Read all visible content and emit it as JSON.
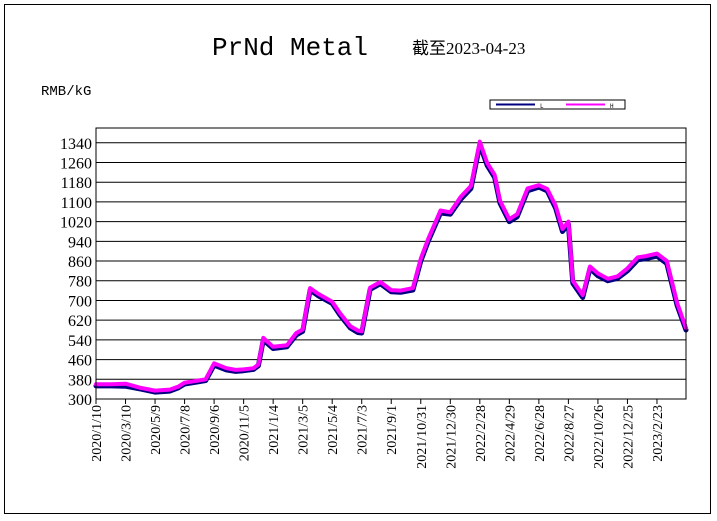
{
  "chart_data": {
    "type": "line",
    "title": "PrNd Metal",
    "subtitle": "截至2023-04-23",
    "ylabel": "RMB/kG",
    "xlabel": "",
    "ylim": [
      300,
      1400
    ],
    "yticks": [
      300,
      380,
      460,
      540,
      620,
      700,
      780,
      860,
      940,
      1020,
      1100,
      1180,
      1260,
      1340
    ],
    "xticks": [
      "2020/1/10",
      "2020/3/10",
      "2020/5/9",
      "2020/7/8",
      "2020/9/6",
      "2020/11/5",
      "2021/1/4",
      "2021/3/5",
      "2021/5/4",
      "2021/7/3",
      "2021/9/1",
      "2021/10/31",
      "2021/12/30",
      "2022/2/28",
      "2022/4/29",
      "2022/6/28",
      "2022/8/27",
      "2022/10/26",
      "2022/12/25",
      "2023/2/23"
    ],
    "grid": true,
    "legend_position": "top-right",
    "colors": {
      "L": "#000080",
      "H": "#ff00ff"
    },
    "series": [
      {
        "name": "L",
        "color": "#000080",
        "x": [
          "2020/1/10",
          "2020/2/10",
          "2020/3/10",
          "2020/4/10",
          "2020/5/9",
          "2020/6/8",
          "2020/6/25",
          "2020/7/8",
          "2020/8/5",
          "2020/8/20",
          "2020/9/6",
          "2020/10/1",
          "2020/10/20",
          "2020/11/5",
          "2020/11/25",
          "2020/12/5",
          "2020/12/15",
          "2021/1/4",
          "2021/2/1",
          "2021/2/20",
          "2021/3/5",
          "2021/3/20",
          "2021/4/5",
          "2021/5/4",
          "2021/5/20",
          "2021/6/10",
          "2021/6/25",
          "2021/7/3",
          "2021/7/20",
          "2021/8/10",
          "2021/9/1",
          "2021/9/20",
          "2021/10/15",
          "2021/10/31",
          "2021/11/15",
          "2021/12/10",
          "2021/12/30",
          "2022/1/20",
          "2022/2/10",
          "2022/2/28",
          "2022/3/15",
          "2022/3/30",
          "2022/4/10",
          "2022/4/29",
          "2022/5/15",
          "2022/6/5",
          "2022/6/28",
          "2022/7/15",
          "2022/8/1",
          "2022/8/15",
          "2022/8/27",
          "2022/9/5",
          "2022/9/25",
          "2022/10/10",
          "2022/10/26",
          "2022/11/15",
          "2022/12/5",
          "2022/12/25",
          "2023/1/15",
          "2023/2/1",
          "2023/2/23",
          "2023/3/15",
          "2023/4/5",
          "2023/4/23"
        ],
        "values": [
          353,
          353,
          352,
          340,
          328,
          332,
          345,
          361,
          370,
          375,
          437,
          418,
          412,
          415,
          420,
          435,
          540,
          505,
          512,
          560,
          575,
          742,
          720,
          688,
          640,
          588,
          570,
          568,
          745,
          768,
          735,
          733,
          742,
          860,
          940,
          1055,
          1050,
          1110,
          1155,
          1332,
          1248,
          1200,
          1095,
          1020,
          1040,
          1145,
          1160,
          1145,
          1075,
          980,
          1010,
          770,
          712,
          830,
          800,
          780,
          790,
          820,
          865,
          870,
          880,
          850,
          680,
          580
        ]
      },
      {
        "name": "H",
        "color": "#ff00ff",
        "x": [
          "2020/1/10",
          "2020/2/10",
          "2020/3/10",
          "2020/4/10",
          "2020/5/9",
          "2020/6/8",
          "2020/6/25",
          "2020/7/8",
          "2020/8/5",
          "2020/8/20",
          "2020/9/6",
          "2020/10/1",
          "2020/10/20",
          "2020/11/5",
          "2020/11/25",
          "2020/12/5",
          "2020/12/15",
          "2021/1/4",
          "2021/2/1",
          "2021/2/20",
          "2021/3/5",
          "2021/3/20",
          "2021/4/5",
          "2021/5/4",
          "2021/5/20",
          "2021/6/10",
          "2021/6/25",
          "2021/7/3",
          "2021/7/20",
          "2021/8/10",
          "2021/9/1",
          "2021/9/20",
          "2021/10/15",
          "2021/10/31",
          "2021/11/15",
          "2021/12/10",
          "2021/12/30",
          "2022/1/20",
          "2022/2/10",
          "2022/2/28",
          "2022/3/15",
          "2022/3/30",
          "2022/4/10",
          "2022/4/29",
          "2022/5/15",
          "2022/6/5",
          "2022/6/28",
          "2022/7/15",
          "2022/8/1",
          "2022/8/15",
          "2022/8/27",
          "2022/9/5",
          "2022/9/25",
          "2022/10/10",
          "2022/10/26",
          "2022/11/15",
          "2022/12/5",
          "2022/12/25",
          "2023/1/15",
          "2023/2/1",
          "2023/2/23",
          "2023/3/15",
          "2023/4/5",
          "2023/4/23"
        ],
        "values": [
          360,
          360,
          362,
          345,
          334,
          338,
          350,
          366,
          375,
          380,
          445,
          425,
          418,
          420,
          425,
          440,
          548,
          512,
          518,
          568,
          582,
          750,
          728,
          695,
          648,
          595,
          578,
          575,
          752,
          775,
          742,
          740,
          750,
          870,
          950,
          1065,
          1058,
          1120,
          1165,
          1345,
          1258,
          1210,
          1105,
          1030,
          1050,
          1155,
          1168,
          1153,
          1085,
          990,
          1020,
          780,
          722,
          838,
          810,
          788,
          798,
          830,
          875,
          880,
          890,
          860,
          690,
          588
        ]
      }
    ]
  }
}
